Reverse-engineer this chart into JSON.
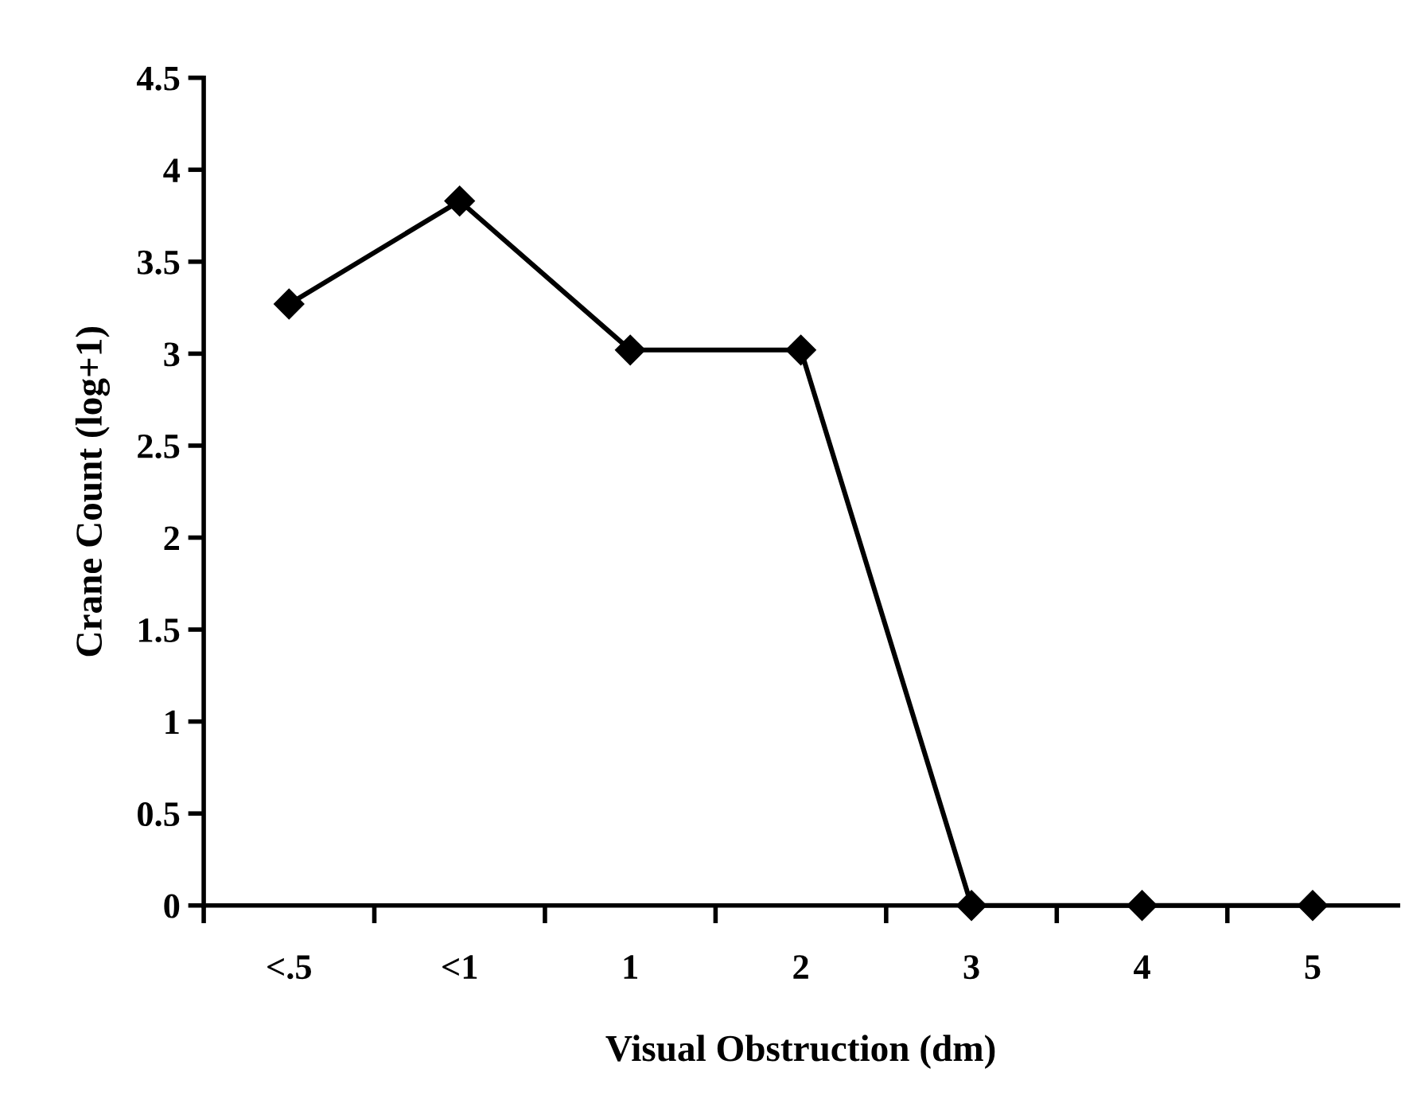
{
  "chart_data": {
    "type": "line",
    "xlabel": "Visual Obstruction (dm)",
    "ylabel": "Crane Count (log+1)",
    "categories": [
      "<.5",
      "<1",
      "1",
      "2",
      "3",
      "4",
      "5"
    ],
    "series": [
      {
        "color": "#000000",
        "values": [
          3.27,
          3.83,
          3.02,
          3.02,
          0,
          0,
          0
        ]
      }
    ],
    "ylim": [
      0,
      4.5
    ],
    "yticks": [
      0,
      0.5,
      1,
      1.5,
      2,
      2.5,
      3,
      3.5,
      4,
      4.5
    ],
    "marker": "diamond",
    "line_style": "solid",
    "grid": false,
    "legend": false
  }
}
